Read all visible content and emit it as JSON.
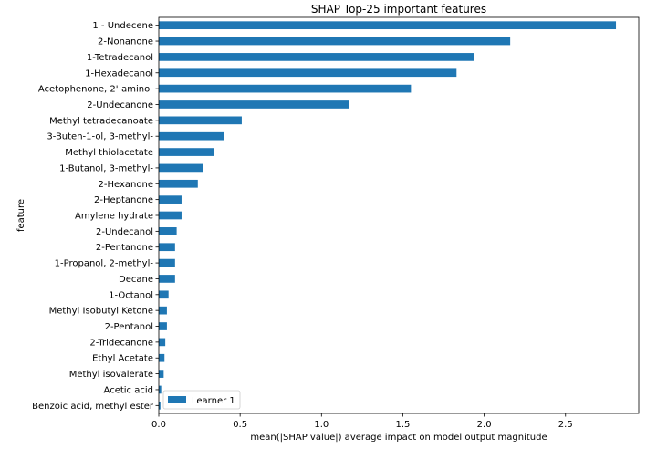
{
  "chart_data": {
    "type": "bar",
    "orientation": "horizontal",
    "title": "SHAP Top-25 important features",
    "xlabel": "mean(|SHAP value|) average impact on model output magnitude",
    "ylabel": "feature",
    "xlim": [
      0,
      2.95
    ],
    "xticks": [
      "0.0",
      "0.5",
      "1.0",
      "1.5",
      "2.0",
      "2.5"
    ],
    "grid": false,
    "legend_position": "bottom-left",
    "bar_color": "#1f77b4",
    "series": [
      {
        "name": "Learner 1",
        "color": "#1f77b4",
        "values": [
          2.81,
          2.16,
          1.94,
          1.83,
          1.55,
          1.17,
          0.51,
          0.4,
          0.34,
          0.27,
          0.24,
          0.14,
          0.14,
          0.11,
          0.1,
          0.1,
          0.1,
          0.06,
          0.05,
          0.05,
          0.04,
          0.035,
          0.03,
          0.015,
          0.01
        ]
      }
    ],
    "categories": [
      "1 - Undecene",
      "2-Nonanone ",
      "1-Tetradecanol",
      "1-Hexadecanol",
      "Acetophenone, 2'-amino-",
      "2-Undecanone",
      "Methyl tetradecanoate",
      "3-Buten-1-ol, 3-methyl-",
      "Methyl thiolacetate",
      "1-Butanol, 3-methyl-",
      "2-Hexanone",
      "2-Heptanone",
      "Amylene hydrate",
      "2-Undecanol",
      "2-Pentanone",
      "1-Propanol, 2-methyl-",
      "Decane",
      "1-Octanol",
      "Methyl Isobutyl Ketone",
      "2-Pentanol",
      "2-Tridecanone",
      "Ethyl Acetate",
      "Methyl isovalerate",
      "Acetic acid",
      "Benzoic acid, methyl ester"
    ]
  }
}
